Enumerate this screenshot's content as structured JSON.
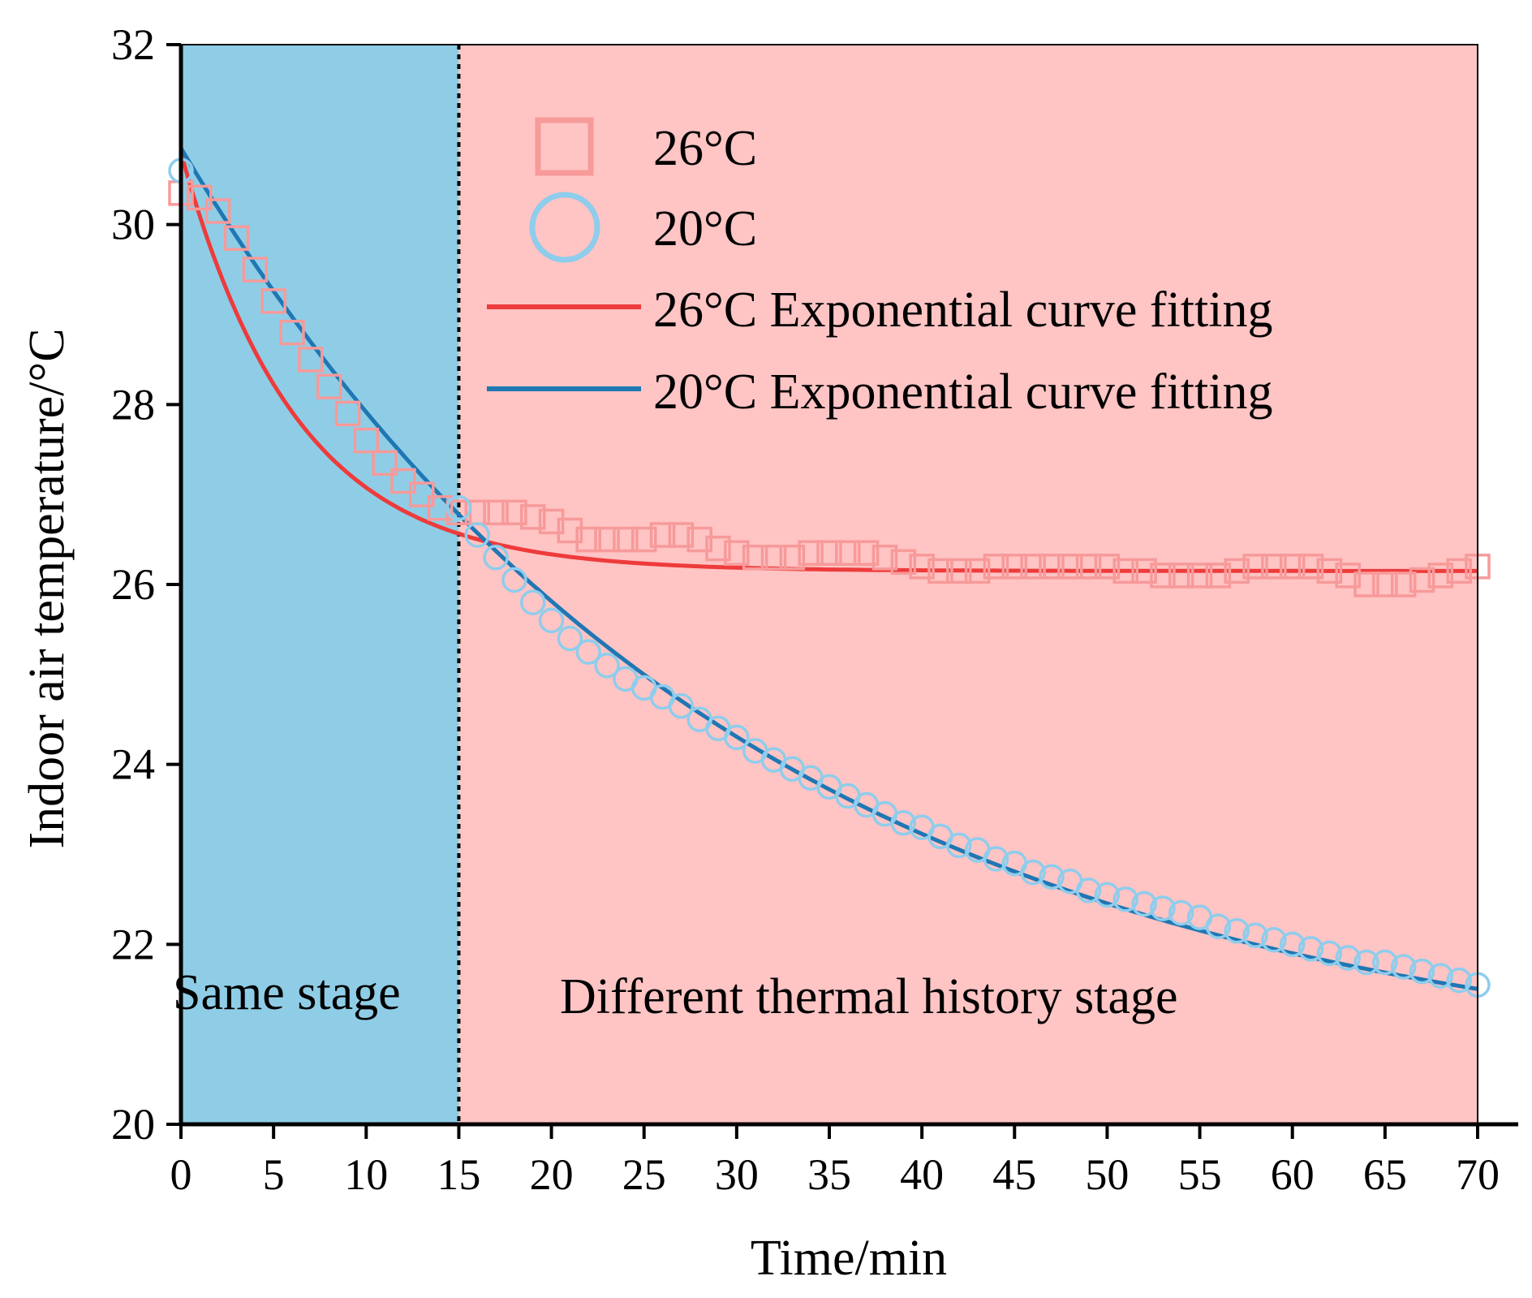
{
  "chart_data": {
    "type": "scatter",
    "title": "",
    "xlabel": "Time/min",
    "ylabel": "Indoor air temperature/°C",
    "xlim": [
      0,
      70
    ],
    "ylim": [
      20,
      32
    ],
    "xticks": [
      "0",
      "5",
      "10",
      "15",
      "20",
      "25",
      "30",
      "35",
      "40",
      "45",
      "50",
      "55",
      "60",
      "65",
      "70"
    ],
    "yticks": [
      "20",
      "22",
      "24",
      "26",
      "28",
      "30",
      "32"
    ],
    "stage_split_x": 15,
    "stages": [
      {
        "label": "Same stage",
        "from": 0,
        "to": 15,
        "color": "#8fcde6"
      },
      {
        "label": "Different thermal history stage",
        "from": 15,
        "to": 70,
        "color": "#ffc4c4"
      }
    ],
    "series": [
      {
        "name": "26°C",
        "marker": "square",
        "color": "#f79a9a",
        "x": [
          0,
          1,
          2,
          3,
          4,
          5,
          6,
          7,
          8,
          9,
          10,
          11,
          12,
          13,
          14,
          15,
          16,
          17,
          18,
          19,
          20,
          21,
          22,
          23,
          24,
          25,
          26,
          27,
          28,
          29,
          30,
          31,
          32,
          33,
          34,
          35,
          36,
          37,
          38,
          39,
          40,
          41,
          42,
          43,
          44,
          45,
          46,
          47,
          48,
          49,
          50,
          51,
          52,
          53,
          54,
          55,
          56,
          57,
          58,
          59,
          60,
          61,
          62,
          63,
          64,
          65,
          66,
          67,
          68,
          69,
          70
        ],
        "y": [
          30.35,
          30.3,
          30.15,
          29.85,
          29.5,
          29.15,
          28.8,
          28.5,
          28.2,
          27.9,
          27.6,
          27.35,
          27.15,
          27.0,
          26.85,
          26.8,
          26.8,
          26.8,
          26.8,
          26.75,
          26.7,
          26.6,
          26.5,
          26.5,
          26.5,
          26.5,
          26.55,
          26.55,
          26.5,
          26.4,
          26.35,
          26.3,
          26.3,
          26.3,
          26.35,
          26.35,
          26.35,
          26.35,
          26.3,
          26.25,
          26.2,
          26.15,
          26.15,
          26.15,
          26.2,
          26.2,
          26.2,
          26.2,
          26.2,
          26.2,
          26.2,
          26.15,
          26.15,
          26.1,
          26.1,
          26.1,
          26.1,
          26.15,
          26.2,
          26.2,
          26.2,
          26.2,
          26.15,
          26.1,
          26.0,
          26.0,
          26.0,
          26.05,
          26.1,
          26.15,
          26.2
        ]
      },
      {
        "name": "20°C",
        "marker": "circle",
        "color": "#8ecdec",
        "x": [
          0,
          15,
          16,
          17,
          18,
          19,
          20,
          21,
          22,
          23,
          24,
          25,
          26,
          27,
          28,
          29,
          30,
          31,
          32,
          33,
          34,
          35,
          36,
          37,
          38,
          39,
          40,
          41,
          42,
          43,
          44,
          45,
          46,
          47,
          48,
          49,
          50,
          51,
          52,
          53,
          54,
          55,
          56,
          57,
          58,
          59,
          60,
          61,
          62,
          63,
          64,
          65,
          66,
          67,
          68,
          69,
          70
        ],
        "y": [
          30.6,
          26.85,
          26.55,
          26.3,
          26.05,
          25.8,
          25.6,
          25.4,
          25.25,
          25.1,
          24.95,
          24.85,
          24.75,
          24.65,
          24.5,
          24.4,
          24.3,
          24.15,
          24.05,
          23.95,
          23.85,
          23.75,
          23.65,
          23.55,
          23.45,
          23.35,
          23.3,
          23.2,
          23.1,
          23.05,
          22.95,
          22.9,
          22.8,
          22.75,
          22.7,
          22.6,
          22.55,
          22.5,
          22.45,
          22.4,
          22.35,
          22.3,
          22.2,
          22.15,
          22.1,
          22.05,
          22.0,
          21.95,
          21.9,
          21.85,
          21.8,
          21.8,
          21.75,
          21.7,
          21.65,
          21.6,
          21.55
        ]
      },
      {
        "name": "26°C Exponential curve fitting",
        "type": "line",
        "color": "#ee3b3b",
        "model": "y = y0 + A*exp(-x/t)",
        "params": {
          "y0": 26.15,
          "A": 4.65,
          "t": 6.2
        }
      },
      {
        "name": "20°C Exponential curve fitting",
        "type": "line",
        "color": "#1f77b4",
        "model": "y = y0 + A*exp(-x/t)",
        "params": {
          "y0": 20.5,
          "A": 10.35,
          "t": 30
        }
      }
    ],
    "legend": [
      "26°C",
      "20°C",
      "26°C Exponential curve fitting",
      "20°C Exponential curve fitting"
    ],
    "legend_position": "top-right",
    "grid": false
  }
}
